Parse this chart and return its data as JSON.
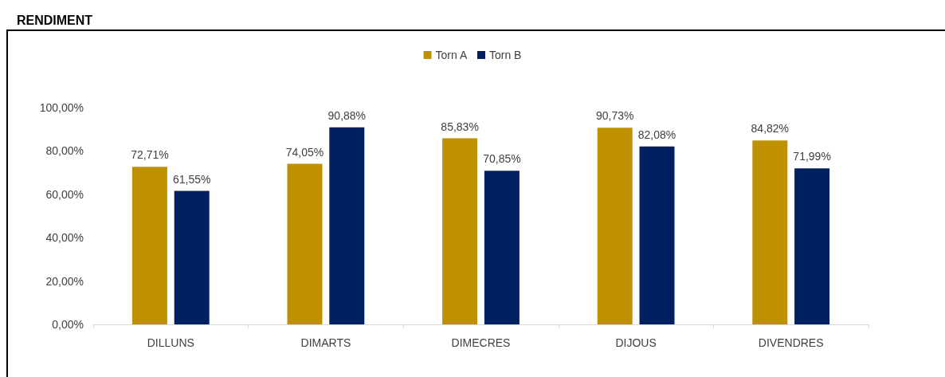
{
  "chart_data": {
    "type": "bar",
    "title": "RENDIMENT",
    "categories": [
      "DILLUNS",
      "DIMARTS",
      "DIMECRES",
      "DIJOUS",
      "DIVENDRES"
    ],
    "series": [
      {
        "name": "Torn A",
        "color": "#bf9000",
        "values": [
          72.71,
          74.05,
          85.83,
          90.73,
          84.82
        ],
        "value_labels": [
          "72,71%",
          "74,05%",
          "85,83%",
          "90,73%",
          "84,82%"
        ]
      },
      {
        "name": "Torn B",
        "color": "#002060",
        "values": [
          61.55,
          90.88,
          70.85,
          82.08,
          71.99
        ],
        "value_labels": [
          "61,55%",
          "90,88%",
          "70,85%",
          "82,08%",
          "71,99%"
        ]
      }
    ],
    "ylim": [
      0,
      100
    ],
    "yticks": [
      {
        "value": 0,
        "label": "0,00%"
      },
      {
        "value": 20,
        "label": "20,00%"
      },
      {
        "value": 40,
        "label": "40,00%"
      },
      {
        "value": 60,
        "label": "60,00%"
      },
      {
        "value": 80,
        "label": "80,00%"
      },
      {
        "value": 100,
        "label": "100,00%"
      }
    ],
    "grid": false,
    "legend": "top"
  }
}
